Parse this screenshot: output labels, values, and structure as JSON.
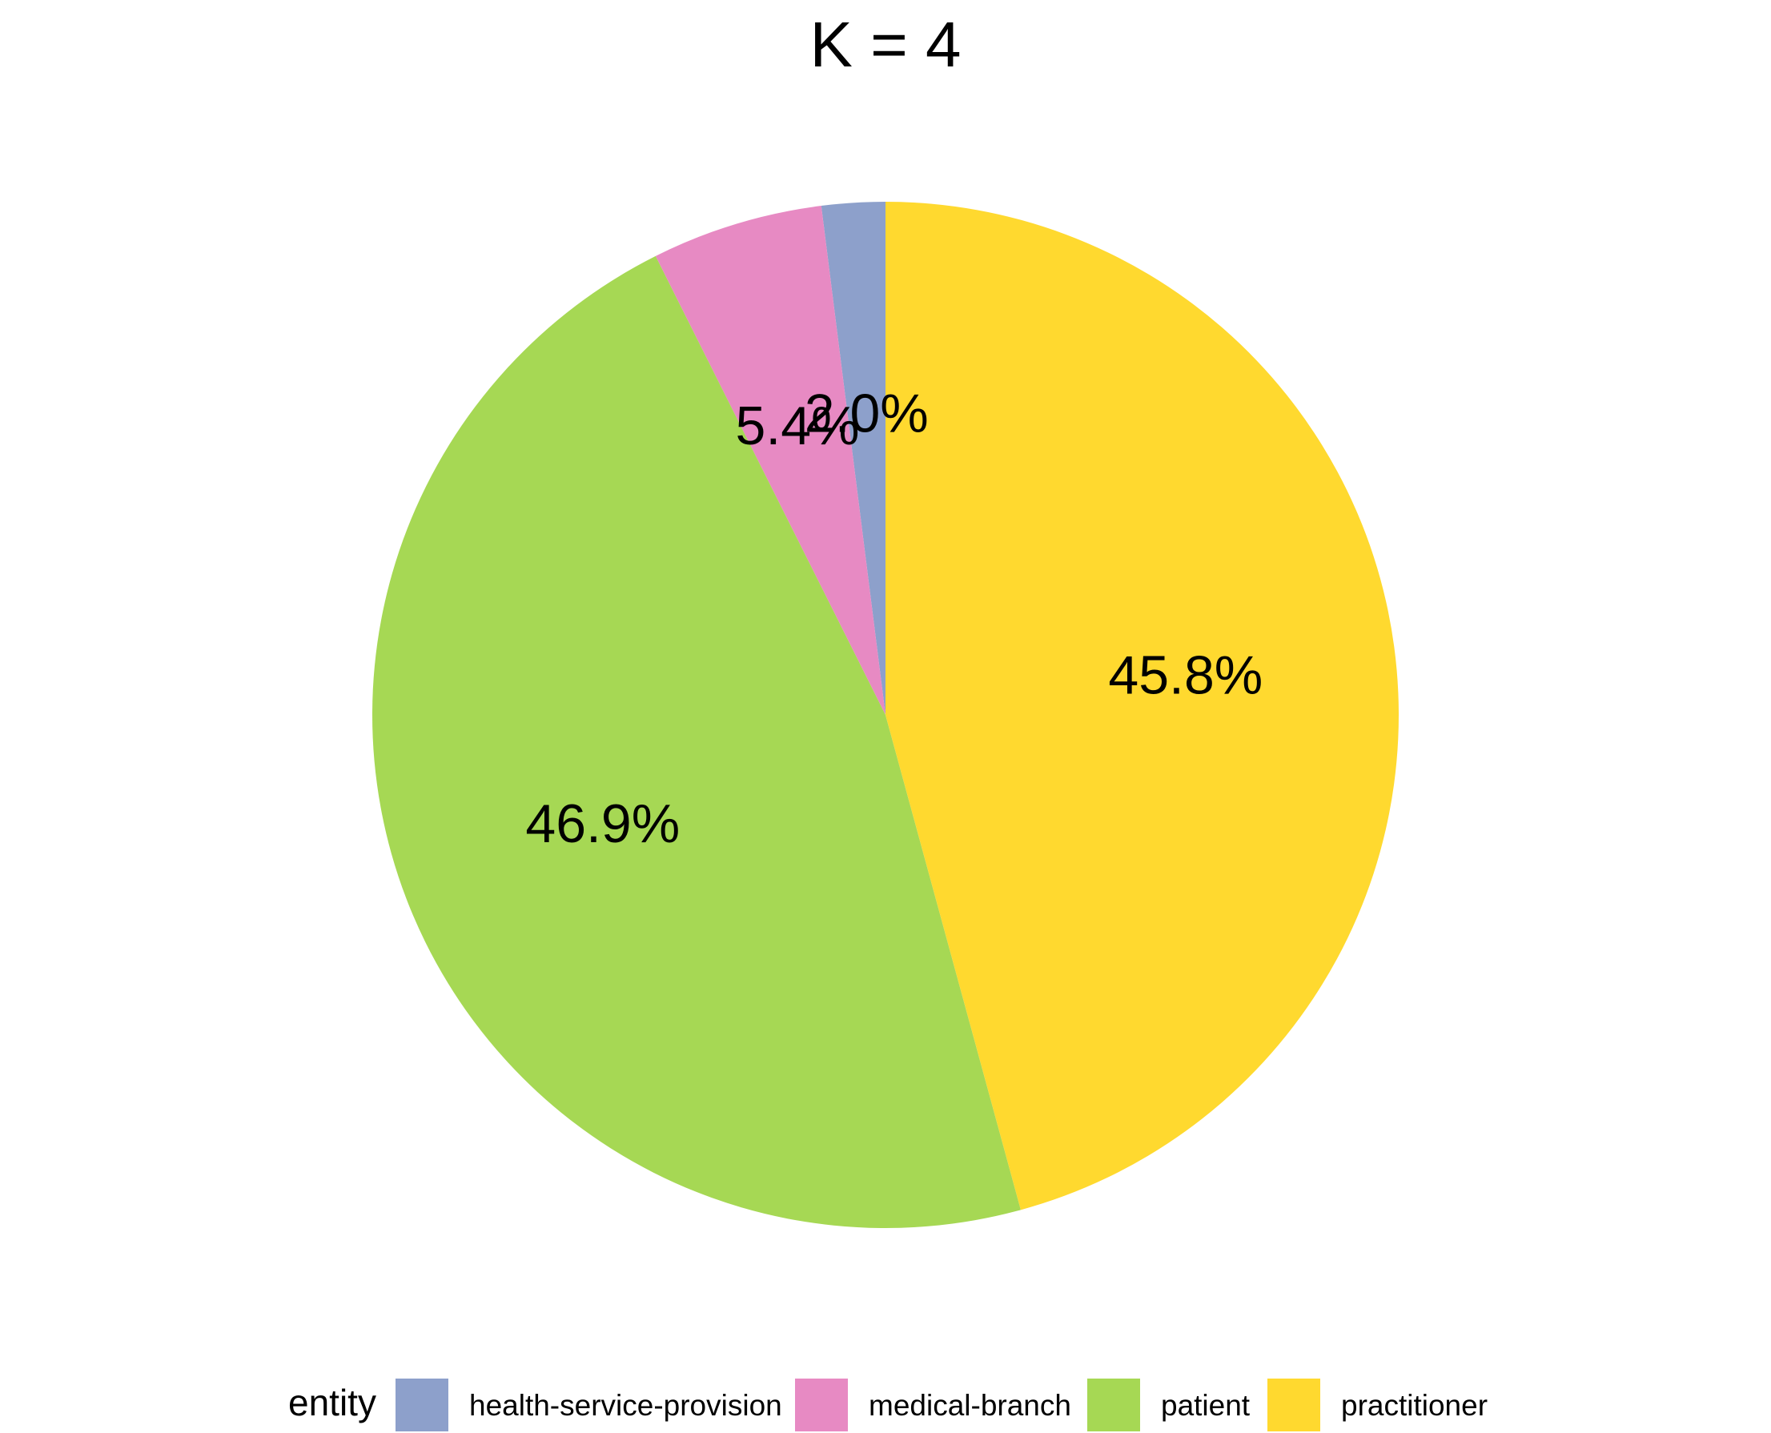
{
  "chart_data": {
    "type": "pie",
    "title": "K = 4",
    "legend": {
      "title": "entity",
      "placement": "bottom"
    },
    "slices": [
      {
        "name": "health-service-provision",
        "value": 2.0,
        "label": "2.0%",
        "color": "#8DA0CB"
      },
      {
        "name": "medical-branch",
        "value": 5.4,
        "label": "5.4%",
        "color": "#E78AC3"
      },
      {
        "name": "patient",
        "value": 46.9,
        "label": "46.9%",
        "color": "#A6D854"
      },
      {
        "name": "practitioner",
        "value": 45.8,
        "label": "45.8%",
        "color": "#FFD92F"
      }
    ]
  }
}
